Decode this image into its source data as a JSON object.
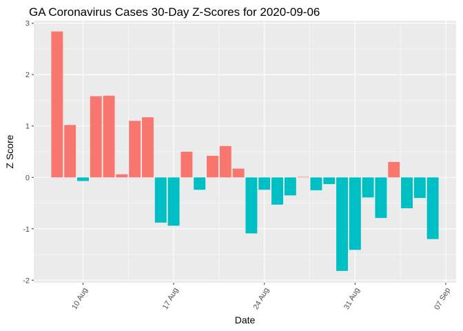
{
  "chart_data": {
    "type": "bar",
    "title": "GA Coronavirus Cases 30-Day Z-Scores for 2020-09-06",
    "xlabel": "Date",
    "ylabel": "Z Score",
    "ylim": [
      -2.05,
      3.05
    ],
    "y_ticks": [
      -2,
      -1,
      0,
      1,
      2,
      3
    ],
    "x_ticks": [
      {
        "day": 10,
        "label": "10 Aug"
      },
      {
        "day": 17,
        "label": "17 Aug"
      },
      {
        "day": 24,
        "label": "24 Aug"
      },
      {
        "day": 31,
        "label": "31 Aug"
      },
      {
        "day": 38,
        "label": "07 Sep"
      }
    ],
    "x_minor_ticks": [
      13.5,
      20.5,
      27.5,
      34.5
    ],
    "x_range_days": [
      6.2,
      38.8
    ],
    "grid": true,
    "positive_color": "#F8766D",
    "negative_color": "#00BFC4",
    "panel_color": "#EBEBEB",
    "categories": [
      "08 Aug",
      "09 Aug",
      "10 Aug",
      "11 Aug",
      "12 Aug",
      "13 Aug",
      "14 Aug",
      "15 Aug",
      "16 Aug",
      "17 Aug",
      "18 Aug",
      "19 Aug",
      "20 Aug",
      "21 Aug",
      "22 Aug",
      "23 Aug",
      "24 Aug",
      "25 Aug",
      "26 Aug",
      "27 Aug",
      "28 Aug",
      "29 Aug",
      "30 Aug",
      "31 Aug",
      "01 Sep",
      "02 Sep",
      "03 Sep",
      "04 Sep",
      "05 Sep",
      "06 Sep"
    ],
    "day_index": [
      8,
      9,
      10,
      11,
      12,
      13,
      14,
      15,
      16,
      17,
      18,
      19,
      20,
      21,
      22,
      23,
      24,
      25,
      26,
      27,
      28,
      29,
      30,
      31,
      32,
      33,
      34,
      35,
      36,
      37
    ],
    "values": [
      2.84,
      1.02,
      -0.07,
      1.58,
      1.59,
      0.06,
      1.1,
      1.17,
      -0.88,
      -0.94,
      0.5,
      -0.24,
      0.42,
      0.61,
      0.17,
      -1.09,
      -0.24,
      -0.53,
      -0.35,
      0.01,
      -0.25,
      -0.13,
      -1.82,
      -1.41,
      -0.39,
      -0.79,
      0.3,
      -0.6,
      -0.4,
      -1.2
    ]
  }
}
